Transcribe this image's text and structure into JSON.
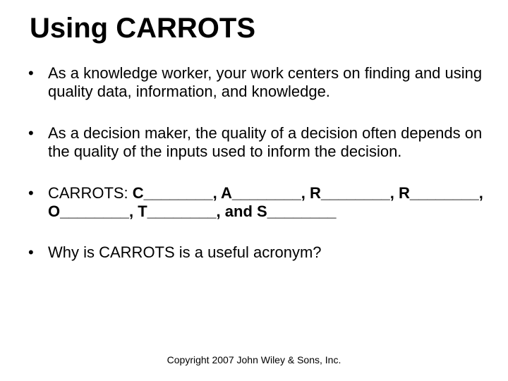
{
  "title": "Using CARROTS",
  "bullets": [
    "As a knowledge worker, your work centers on finding and using quality data, information, and knowledge.",
    "As a decision maker, the quality of a decision often depends on the quality of the inputs used to inform the decision.",
    "CARROTS: C________, A________, R________, R________, O________, T________, and S________",
    "Why is CARROTS is a useful acronym?"
  ],
  "copyright": "Copyright 2007 John Wiley & Sons, Inc.",
  "styles": {
    "background": "#ffffff",
    "text_color": "#000000",
    "title_fontsize": 40,
    "bullet_fontsize": 22,
    "footer_fontsize": 14,
    "font_family": "Arial"
  },
  "carrots_prefix": "CARROTS: ",
  "carrots_fill": "C________, A________, R________, R________, O________, T________, and S________"
}
